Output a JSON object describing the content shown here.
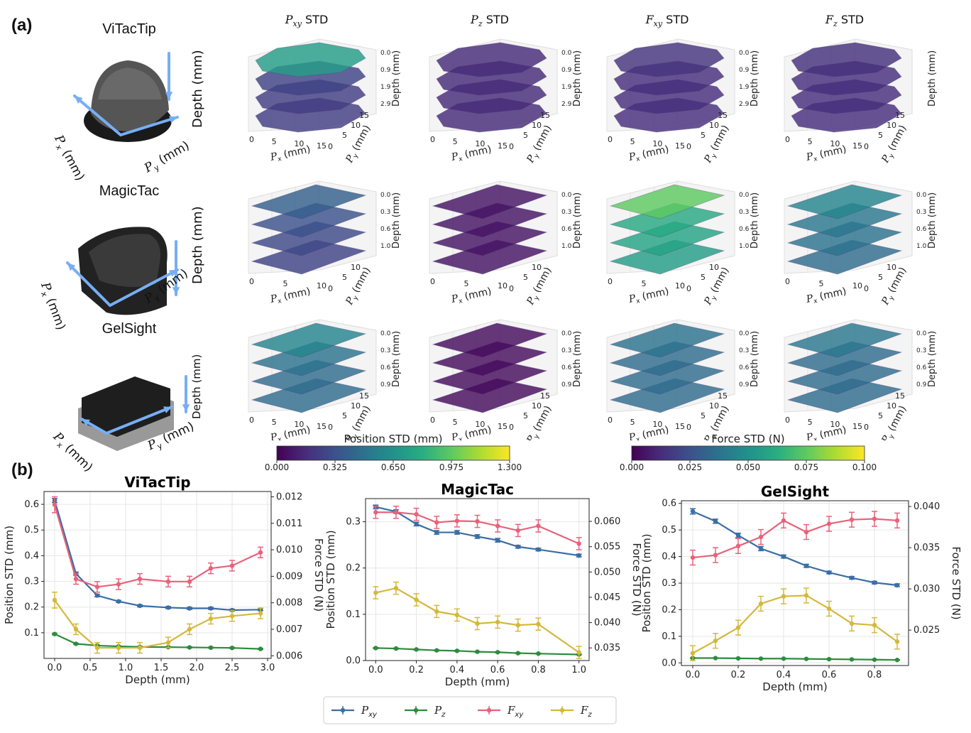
{
  "panel_a": {
    "label": "(a)",
    "sensors": [
      {
        "name": "ViTacTip",
        "px_label": "Px (mm)",
        "py_label": "Py (mm)",
        "depth_label": "Depth (mm)"
      },
      {
        "name": "MagicTac",
        "px_label": "Px (mm)",
        "py_label": "Py (mm)",
        "depth_label": "Depth (mm)"
      },
      {
        "name": "GelSight",
        "px_label": "Px (mm)",
        "py_label": "Py (mm)",
        "depth_label": "Depth (mm)"
      }
    ],
    "column_titles": [
      {
        "sym": "P",
        "sub": "xy",
        "suffix": " STD"
      },
      {
        "sym": "P",
        "sub": "z",
        "suffix": " STD"
      },
      {
        "sym": "F",
        "sub": "xy",
        "suffix": " STD"
      },
      {
        "sym": "F",
        "sub": "z",
        "suffix": " STD"
      }
    ],
    "rows": [
      {
        "depth_ticks": [
          "0.0",
          "0.9",
          "1.9",
          "2.9"
        ],
        "x_ticks": [
          "0",
          "5",
          "10",
          "15"
        ],
        "y_ticks": [
          "0",
          "5",
          "10",
          "15"
        ],
        "layers": 4,
        "shape": "circle",
        "cells": [
          {
            "title": "Pxy STD",
            "intensity": [
              0.55,
              0.2,
              0.18,
              0.18
            ],
            "show_depth_labels": true
          },
          {
            "title": "Pz STD",
            "intensity": [
              0.12,
              0.12,
              0.12,
              0.12
            ],
            "show_depth_labels": true
          },
          {
            "title": "Fxy STD",
            "intensity": [
              0.15,
              0.13,
              0.13,
              0.13
            ],
            "show_depth_labels": true
          },
          {
            "title": "Fz STD",
            "intensity": [
              0.14,
              0.13,
              0.13,
              0.13
            ],
            "show_depth_labels": false
          }
        ]
      },
      {
        "depth_ticks": [
          "0.0",
          "0.3",
          "0.6",
          "1.0"
        ],
        "x_ticks": [
          "0",
          "5",
          "10"
        ],
        "y_ticks": [
          "0",
          "5",
          "10"
        ],
        "layers": 4,
        "shape": "square",
        "cells": [
          {
            "title": "Pxy STD",
            "intensity": [
              0.3,
              0.25,
              0.22,
              0.2
            ],
            "show_depth_labels": true
          },
          {
            "title": "Pz STD",
            "intensity": [
              0.05,
              0.05,
              0.05,
              0.05
            ],
            "show_depth_labels": true
          },
          {
            "title": "Fxy STD",
            "intensity": [
              0.75,
              0.6,
              0.58,
              0.55
            ],
            "show_depth_labels": true
          },
          {
            "title": "Fz STD",
            "intensity": [
              0.45,
              0.4,
              0.38,
              0.35
            ],
            "show_depth_labels": true
          }
        ]
      },
      {
        "depth_ticks": [
          "0.0",
          "0.3",
          "0.6",
          "0.9"
        ],
        "x_ticks": [
          "0",
          "5",
          "10",
          "15"
        ],
        "y_ticks": [
          "0",
          "5",
          "10",
          "15"
        ],
        "layers": 4,
        "shape": "square",
        "cells": [
          {
            "title": "Pxy STD",
            "intensity": [
              0.45,
              0.38,
              0.35,
              0.35
            ],
            "show_depth_labels": true
          },
          {
            "title": "Pz STD",
            "intensity": [
              0.03,
              0.03,
              0.03,
              0.03
            ],
            "show_depth_labels": true
          },
          {
            "title": "Fxy STD",
            "intensity": [
              0.38,
              0.35,
              0.35,
              0.35
            ],
            "show_depth_labels": true
          },
          {
            "title": "Fz STD",
            "intensity": [
              0.4,
              0.35,
              0.35,
              0.35
            ],
            "show_depth_labels": true
          }
        ]
      }
    ],
    "colorbars": [
      {
        "label": "Position STD (mm)",
        "ticks": [
          "0.000",
          "0.325",
          "0.650",
          "0.975",
          "1.300"
        ],
        "range": [
          0,
          1.3
        ]
      },
      {
        "label": "Force STD (N)",
        "ticks": [
          "0.000",
          "0.025",
          "0.050",
          "0.075",
          "0.100"
        ],
        "range": [
          0,
          0.1
        ]
      }
    ],
    "colormap": [
      "#440154",
      "#472d7b",
      "#3b528b",
      "#2c728e",
      "#21918c",
      "#28ae80",
      "#5ec962",
      "#addc30",
      "#fde725"
    ]
  },
  "panel_b": {
    "label": "(b)"
  },
  "chart_data": [
    {
      "type": "line",
      "title": "ViTacTip",
      "xlabel": "Depth (mm)",
      "ylabel": "Position STD (mm)",
      "y2label": "Force STD (N)",
      "x": [
        0.0,
        0.3,
        0.6,
        0.9,
        1.2,
        1.6,
        1.9,
        2.2,
        2.5,
        2.9
      ],
      "xlim": [
        -0.15,
        3.05
      ],
      "ylim": [
        0.0,
        0.65
      ],
      "y2lim": [
        0.0059,
        0.0122
      ],
      "xticks": [
        0.0,
        0.5,
        1.0,
        1.5,
        2.0,
        2.5,
        3.0
      ],
      "xtick_labels": [
        "0.0",
        "0.5",
        "1.0",
        "1.5",
        "2.0",
        "2.5",
        "3.0"
      ],
      "yticks": [
        0.1,
        0.2,
        0.3,
        0.4,
        0.5,
        0.6
      ],
      "ytick_labels": [
        "0.1",
        "0.2",
        "0.3",
        "0.4",
        "0.5",
        "0.6"
      ],
      "y2ticks": [
        0.006,
        0.007,
        0.008,
        0.009,
        0.01,
        0.011,
        0.012
      ],
      "y2tick_labels": [
        "0.006",
        "0.007",
        "0.008",
        "0.009",
        "0.010",
        "0.011",
        "0.012"
      ],
      "series": [
        {
          "name": "Pxy",
          "axis": "left",
          "color": "#3a6ea5",
          "values": [
            0.615,
            0.33,
            0.245,
            0.222,
            0.205,
            0.198,
            0.195,
            0.195,
            0.188,
            0.19
          ],
          "err": [
            0.008,
            0.006,
            0.005,
            0.004,
            0.004,
            0.004,
            0.004,
            0.004,
            0.004,
            0.004
          ]
        },
        {
          "name": "Pz",
          "axis": "left",
          "color": "#2e8b3e",
          "values": [
            0.095,
            0.057,
            0.05,
            0.047,
            0.045,
            0.044,
            0.043,
            0.042,
            0.041,
            0.037
          ],
          "err": [
            0.003,
            0.002,
            0.002,
            0.002,
            0.002,
            0.002,
            0.002,
            0.002,
            0.002,
            0.002
          ]
        },
        {
          "name": "Fxy",
          "axis": "right",
          "color": "#e8627a",
          "values": [
            0.0117,
            0.0089,
            0.0086,
            0.0087,
            0.0089,
            0.0088,
            0.0088,
            0.0093,
            0.0094,
            0.0099
          ],
          "err": [
            0.0003,
            0.0002,
            0.0002,
            0.0002,
            0.0002,
            0.0002,
            0.0002,
            0.0002,
            0.0002,
            0.0002
          ]
        },
        {
          "name": "Fz",
          "axis": "right",
          "color": "#d4b83c",
          "values": [
            0.0081,
            0.007,
            0.0063,
            0.0063,
            0.0063,
            0.0065,
            0.007,
            0.0074,
            0.0075,
            0.0076
          ],
          "err": [
            0.0003,
            0.0002,
            0.0002,
            0.0002,
            0.0002,
            0.0002,
            0.0002,
            0.0002,
            0.0002,
            0.0002
          ]
        }
      ]
    },
    {
      "type": "line",
      "title": "MagicTac",
      "xlabel": "Depth (mm)",
      "ylabel": "Position STD (mm)",
      "y2label": "Force STD (N)",
      "x": [
        0.0,
        0.1,
        0.2,
        0.3,
        0.4,
        0.5,
        0.6,
        0.7,
        0.8,
        1.0
      ],
      "xlim": [
        -0.05,
        1.05
      ],
      "ylim": [
        0.0,
        0.35
      ],
      "y2lim": [
        0.0325,
        0.0645
      ],
      "xticks": [
        0.0,
        0.2,
        0.4,
        0.6,
        0.8,
        1.0
      ],
      "xtick_labels": [
        "0.0",
        "0.2",
        "0.4",
        "0.6",
        "0.8",
        "1.0"
      ],
      "yticks": [
        0.0,
        0.1,
        0.2,
        0.3
      ],
      "ytick_labels": [
        "0.0",
        "0.1",
        "0.2",
        "0.3"
      ],
      "y2ticks": [
        0.035,
        0.04,
        0.045,
        0.05,
        0.055,
        0.06
      ],
      "y2tick_labels": [
        "0.035",
        "0.040",
        "0.045",
        "0.050",
        "0.055",
        "0.060"
      ],
      "series": [
        {
          "name": "Pxy",
          "axis": "left",
          "color": "#3a6ea5",
          "values": [
            0.332,
            0.322,
            0.295,
            0.277,
            0.277,
            0.268,
            0.26,
            0.246,
            0.24,
            0.227
          ],
          "err": [
            0.004,
            0.004,
            0.004,
            0.004,
            0.004,
            0.004,
            0.004,
            0.003,
            0.003,
            0.003
          ]
        },
        {
          "name": "Pz",
          "axis": "left",
          "color": "#2e8b3e",
          "values": [
            0.027,
            0.026,
            0.024,
            0.022,
            0.021,
            0.019,
            0.018,
            0.016,
            0.015,
            0.013
          ],
          "err": [
            0.001,
            0.001,
            0.001,
            0.001,
            0.001,
            0.001,
            0.001,
            0.001,
            0.001,
            0.001
          ]
        },
        {
          "name": "Fxy",
          "axis": "right",
          "color": "#e8627a",
          "values": [
            0.0618,
            0.0618,
            0.0614,
            0.0598,
            0.0601,
            0.06,
            0.0591,
            0.0582,
            0.0591,
            0.0556
          ],
          "err": [
            0.0012,
            0.0012,
            0.0012,
            0.0012,
            0.0012,
            0.0012,
            0.0012,
            0.0012,
            0.0012,
            0.0012
          ]
        },
        {
          "name": "Fz",
          "axis": "right",
          "color": "#d4b83c",
          "values": [
            0.0459,
            0.0468,
            0.0445,
            0.0422,
            0.0415,
            0.0398,
            0.0401,
            0.0395,
            0.0397,
            0.0341
          ],
          "err": [
            0.0012,
            0.0012,
            0.0012,
            0.0012,
            0.0012,
            0.0012,
            0.0012,
            0.0012,
            0.0012,
            0.0012
          ]
        }
      ]
    },
    {
      "type": "line",
      "title": "GelSight",
      "xlabel": "Depth (mm)",
      "ylabel": "Position STD (mm)",
      "y2label": "Force STD (N)",
      "x": [
        0.0,
        0.1,
        0.2,
        0.3,
        0.4,
        0.5,
        0.6,
        0.7,
        0.8,
        0.9
      ],
      "xlim": [
        -0.05,
        0.95
      ],
      "ylim": [
        -0.01,
        0.61
      ],
      "y2lim": [
        0.0207,
        0.0407
      ],
      "xticks": [
        0.0,
        0.2,
        0.4,
        0.6,
        0.8
      ],
      "xtick_labels": [
        "0.0",
        "0.2",
        "0.4",
        "0.6",
        "0.8"
      ],
      "yticks": [
        0.0,
        0.1,
        0.2,
        0.3,
        0.4,
        0.5,
        0.6
      ],
      "ytick_labels": [
        "0.0",
        "0.1",
        "0.2",
        "0.3",
        "0.4",
        "0.5",
        "0.6"
      ],
      "y2ticks": [
        0.025,
        0.03,
        0.035,
        0.04
      ],
      "y2tick_labels": [
        "0.025",
        "0.030",
        "0.035",
        "0.040"
      ],
      "series": [
        {
          "name": "Pxy",
          "axis": "left",
          "color": "#3a6ea5",
          "values": [
            0.57,
            0.533,
            0.48,
            0.43,
            0.4,
            0.365,
            0.34,
            0.32,
            0.302,
            0.292
          ],
          "err": [
            0.01,
            0.008,
            0.008,
            0.008,
            0.006,
            0.006,
            0.005,
            0.005,
            0.005,
            0.005
          ]
        },
        {
          "name": "Pz",
          "axis": "left",
          "color": "#2e8b3e",
          "values": [
            0.018,
            0.018,
            0.017,
            0.016,
            0.016,
            0.015,
            0.014,
            0.013,
            0.012,
            0.011
          ],
          "err": [
            0.001,
            0.001,
            0.001,
            0.001,
            0.001,
            0.001,
            0.001,
            0.001,
            0.001,
            0.001
          ]
        },
        {
          "name": "Fxy",
          "axis": "right",
          "color": "#e8627a",
          "values": [
            0.0338,
            0.0341,
            0.0352,
            0.0363,
            0.0383,
            0.0369,
            0.0379,
            0.0384,
            0.0385,
            0.0383
          ],
          "err": [
            0.0009,
            0.0009,
            0.0009,
            0.0009,
            0.0009,
            0.0009,
            0.0009,
            0.0009,
            0.0009,
            0.0009
          ]
        },
        {
          "name": "Fz",
          "axis": "right",
          "color": "#d4b83c",
          "values": [
            0.0222,
            0.0237,
            0.0253,
            0.0282,
            0.0291,
            0.0292,
            0.0276,
            0.0258,
            0.0256,
            0.0236
          ],
          "err": [
            0.0009,
            0.0009,
            0.0009,
            0.0009,
            0.0009,
            0.0009,
            0.0009,
            0.0009,
            0.0009,
            0.0009
          ]
        }
      ]
    }
  ],
  "legend": {
    "position": "bottom-center",
    "entries": [
      {
        "sym": "P",
        "sub": "xy",
        "color": "#3a6ea5"
      },
      {
        "sym": "P",
        "sub": "z",
        "color": "#2e8b3e"
      },
      {
        "sym": "F",
        "sub": "xy",
        "color": "#e8627a"
      },
      {
        "sym": "F",
        "sub": "z",
        "color": "#d4b83c"
      }
    ]
  }
}
